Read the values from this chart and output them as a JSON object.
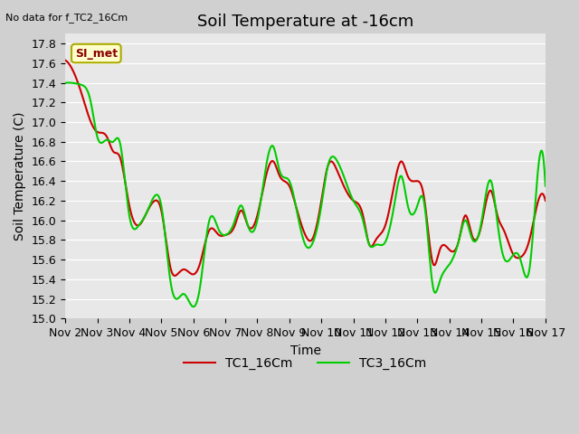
{
  "title": "Soil Temperature at -16cm",
  "ylabel": "Soil Temperature (C)",
  "xlabel": "Time",
  "note": "No data for f_TC2_16Cm",
  "annotation": "SI_met",
  "ylim": [
    15.0,
    17.9
  ],
  "yticks": [
    15.0,
    15.2,
    15.4,
    15.6,
    15.8,
    16.0,
    16.2,
    16.4,
    16.6,
    16.8,
    17.0,
    17.2,
    17.4,
    17.6,
    17.8
  ],
  "xlim_days": [
    0,
    15
  ],
  "x_tick_labels": [
    "Nov 2",
    "Nov 3",
    "Nov 4",
    "Nov 5",
    "Nov 6",
    "Nov 7",
    "Nov 8",
    "Nov 9",
    "Nov 10",
    "Nov 11",
    "Nov 12",
    "Nov 13",
    "Nov 14",
    "Nov 15",
    "Nov 16",
    "Nov 17"
  ],
  "color_tc1": "#cc0000",
  "color_tc3": "#00cc00",
  "legend_entries": [
    "TC1_16Cm",
    "TC3_16Cm"
  ],
  "bg_color": "#e8e8e8",
  "fig_bg_color": "#d0d0d0",
  "title_fontsize": 13,
  "label_fontsize": 10,
  "tick_fontsize": 9,
  "line_width": 1.5,
  "tc1_keypoints_x": [
    0,
    0.2,
    0.5,
    0.8,
    1.0,
    1.3,
    1.5,
    1.7,
    2.0,
    2.3,
    2.5,
    2.8,
    3.0,
    3.3,
    3.5,
    3.7,
    4.0,
    4.2,
    4.5,
    4.8,
    5.0,
    5.3,
    5.5,
    5.7,
    6.0,
    6.2,
    6.5,
    6.7,
    7.0,
    7.2,
    7.5,
    7.7,
    8.0,
    8.2,
    8.5,
    8.7,
    9.0,
    9.3,
    9.5,
    9.7,
    10.0,
    10.3,
    10.5,
    10.7,
    11.0,
    11.2,
    11.5,
    11.7,
    12.0,
    12.3,
    12.5,
    12.7,
    13.0,
    13.3,
    13.5,
    13.7,
    14.0,
    14.2,
    14.5,
    14.7,
    15.0
  ],
  "tc1_keypoints_y": [
    17.63,
    17.55,
    17.3,
    17.0,
    16.9,
    16.85,
    16.7,
    16.65,
    16.15,
    15.95,
    16.05,
    16.2,
    16.1,
    15.5,
    15.45,
    15.5,
    15.45,
    15.55,
    15.9,
    15.85,
    15.85,
    15.95,
    16.1,
    15.95,
    16.05,
    16.35,
    16.6,
    16.45,
    16.35,
    16.15,
    15.85,
    15.8,
    16.2,
    16.55,
    16.5,
    16.35,
    16.2,
    16.05,
    15.75,
    15.8,
    15.95,
    16.4,
    16.6,
    16.45,
    16.4,
    16.25,
    15.55,
    15.7,
    15.7,
    15.8,
    16.05,
    15.85,
    15.95,
    16.3,
    16.05,
    15.9,
    15.65,
    15.62,
    15.8,
    16.1,
    16.2
  ],
  "tc3_keypoints_x": [
    0,
    0.2,
    0.5,
    0.8,
    1.0,
    1.3,
    1.5,
    1.7,
    2.0,
    2.3,
    2.5,
    2.8,
    3.0,
    3.3,
    3.5,
    3.7,
    4.0,
    4.2,
    4.5,
    4.8,
    5.0,
    5.3,
    5.5,
    5.7,
    6.0,
    6.2,
    6.5,
    6.7,
    7.0,
    7.2,
    7.5,
    7.7,
    8.0,
    8.2,
    8.5,
    8.7,
    9.0,
    9.3,
    9.5,
    9.7,
    10.0,
    10.3,
    10.5,
    10.7,
    11.0,
    11.2,
    11.5,
    11.7,
    12.0,
    12.3,
    12.5,
    12.7,
    13.0,
    13.3,
    13.5,
    13.7,
    14.0,
    14.2,
    14.5,
    14.7,
    15.0
  ],
  "tc3_keypoints_y": [
    17.4,
    17.4,
    17.38,
    17.2,
    16.85,
    16.82,
    16.8,
    16.8,
    16.05,
    15.95,
    16.05,
    16.25,
    16.15,
    15.35,
    15.2,
    15.25,
    15.12,
    15.3,
    16.0,
    15.9,
    15.85,
    16.0,
    16.15,
    15.95,
    16.0,
    16.4,
    16.75,
    16.5,
    16.4,
    16.15,
    15.75,
    15.75,
    16.15,
    16.55,
    16.6,
    16.45,
    16.2,
    16.0,
    15.75,
    15.75,
    15.78,
    16.2,
    16.45,
    16.15,
    16.15,
    16.2,
    15.3,
    15.38,
    15.55,
    15.8,
    16.0,
    15.82,
    15.98,
    16.4,
    15.98,
    15.62,
    15.65,
    15.62,
    15.5,
    16.25,
    16.35
  ]
}
